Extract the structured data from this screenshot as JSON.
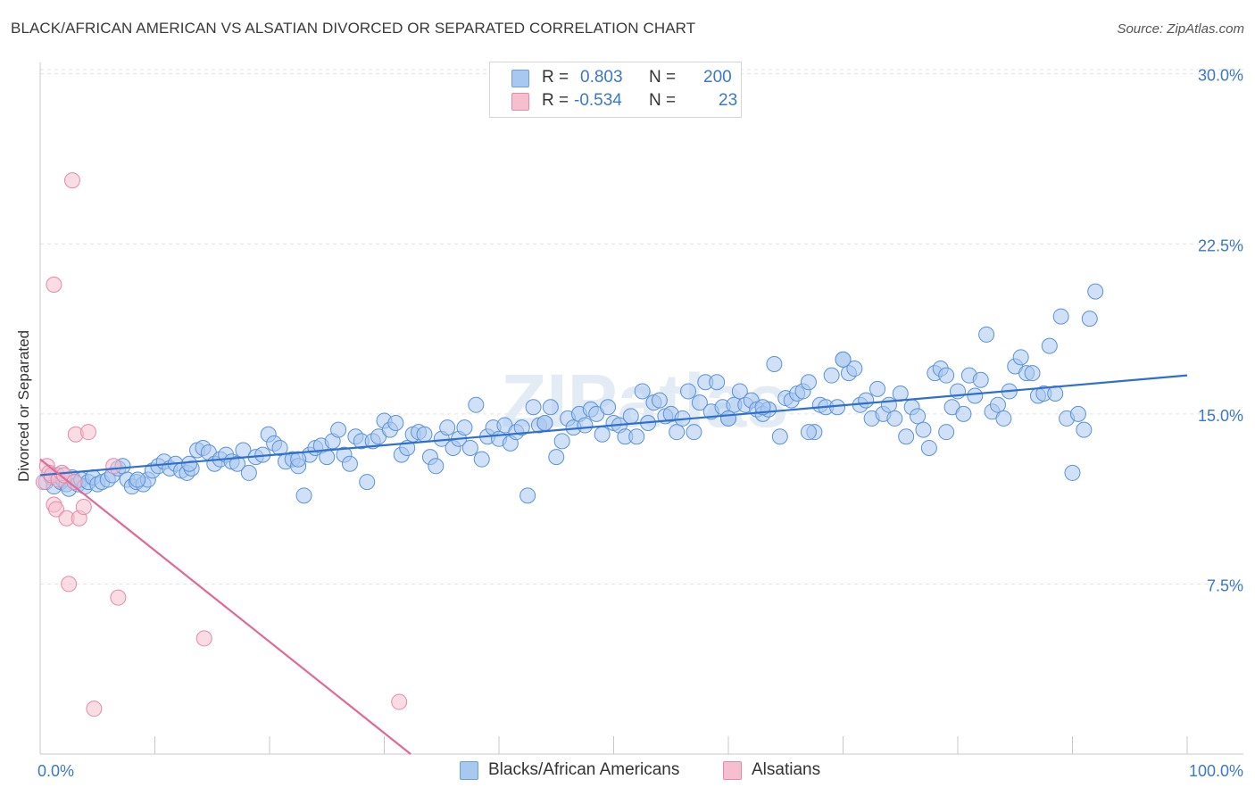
{
  "header": {
    "title": "BLACK/AFRICAN AMERICAN VS ALSATIAN DIVORCED OR SEPARATED CORRELATION CHART",
    "source": "Source: ZipAtlas.com"
  },
  "legend": {
    "rows": [
      {
        "r_label": "R =",
        "r_value": "0.803",
        "n_label": "N =",
        "n_value": "200",
        "color": "#a9c8f0",
        "border": "#6d9fdc"
      },
      {
        "r_label": "R =",
        "r_value": "-0.534",
        "n_label": "N =",
        "n_value": "23",
        "color": "#f6bfd0",
        "border": "#e58aa8"
      }
    ]
  },
  "bottom_legend": [
    {
      "label": "Blacks/African Americans",
      "color": "#a9c8f0",
      "border": "#6d9fdc"
    },
    {
      "label": "Alsatians",
      "color": "#f6bfd0",
      "border": "#e58aa8"
    }
  ],
  "watermark": "ZIPatlas",
  "chart_data": {
    "type": "scatter",
    "title": "BLACK/AFRICAN AMERICAN VS ALSATIAN DIVORCED OR SEPARATED CORRELATION CHART",
    "xlabel": "",
    "ylabel": "Divorced or Separated",
    "xlim": [
      0,
      100
    ],
    "ylim": [
      0,
      30.5
    ],
    "y_ticks": [
      7.5,
      15.0,
      22.5,
      30.0
    ],
    "y_tick_labels": [
      "7.5%",
      "15.0%",
      "22.5%",
      "30.0%"
    ],
    "x_tick_labels": [
      "0.0%",
      "100.0%"
    ],
    "grid": "horizontal dashed",
    "legend_position": "top-center",
    "colors": {
      "blue": "#3a78c8",
      "pink": "#e06a95",
      "axis_text": "#3a78c8"
    },
    "series": [
      {
        "name": "Blacks/African Americans",
        "color": "#a9c8f0",
        "trendline": {
          "x": [
            0,
            100
          ],
          "y": [
            12.3,
            16.7
          ],
          "color": "#2f6fce"
        },
        "points": [
          [
            0.5,
            12.0
          ],
          [
            1.0,
            12.2
          ],
          [
            1.2,
            11.8
          ],
          [
            1.5,
            12.3
          ],
          [
            1.8,
            12.0
          ],
          [
            2.0,
            12.1
          ],
          [
            2.3,
            11.9
          ],
          [
            2.5,
            11.7
          ],
          [
            2.8,
            12.2
          ],
          [
            3.0,
            12.0
          ],
          [
            3.3,
            11.9
          ],
          [
            3.6,
            12.1
          ],
          [
            3.9,
            11.8
          ],
          [
            4.2,
            12.0
          ],
          [
            4.6,
            12.2
          ],
          [
            5.0,
            11.9
          ],
          [
            5.4,
            12.0
          ],
          [
            5.9,
            12.1
          ],
          [
            6.3,
            12.3
          ],
          [
            6.8,
            12.6
          ],
          [
            7.2,
            12.7
          ],
          [
            7.6,
            12.1
          ],
          [
            8.0,
            11.8
          ],
          [
            8.4,
            12.0
          ],
          [
            9.0,
            11.9
          ],
          [
            9.4,
            12.1
          ],
          [
            9.8,
            12.5
          ],
          [
            10.3,
            12.7
          ],
          [
            10.8,
            12.9
          ],
          [
            11.3,
            12.6
          ],
          [
            11.8,
            12.8
          ],
          [
            12.3,
            12.5
          ],
          [
            12.8,
            12.4
          ],
          [
            13.2,
            12.6
          ],
          [
            13.7,
            13.4
          ],
          [
            14.2,
            13.5
          ],
          [
            14.7,
            13.3
          ],
          [
            15.2,
            12.8
          ],
          [
            15.7,
            13.0
          ],
          [
            16.2,
            13.2
          ],
          [
            16.7,
            12.9
          ],
          [
            17.2,
            12.8
          ],
          [
            17.7,
            13.4
          ],
          [
            18.2,
            12.4
          ],
          [
            18.8,
            13.1
          ],
          [
            19.4,
            13.2
          ],
          [
            19.9,
            14.1
          ],
          [
            20.4,
            13.7
          ],
          [
            20.9,
            13.5
          ],
          [
            21.4,
            12.9
          ],
          [
            22.0,
            13.0
          ],
          [
            22.5,
            12.7
          ],
          [
            23.0,
            11.4
          ],
          [
            23.5,
            13.2
          ],
          [
            24.0,
            13.5
          ],
          [
            24.5,
            13.6
          ],
          [
            25.0,
            13.1
          ],
          [
            25.5,
            13.8
          ],
          [
            26.0,
            14.3
          ],
          [
            26.5,
            13.2
          ],
          [
            27.0,
            12.8
          ],
          [
            27.5,
            14.0
          ],
          [
            28.0,
            13.8
          ],
          [
            28.5,
            12.0
          ],
          [
            29.0,
            13.8
          ],
          [
            29.5,
            14.0
          ],
          [
            30.0,
            14.7
          ],
          [
            30.5,
            14.3
          ],
          [
            31.0,
            14.6
          ],
          [
            31.5,
            13.2
          ],
          [
            32.0,
            13.5
          ],
          [
            32.5,
            14.1
          ],
          [
            33.0,
            14.2
          ],
          [
            33.5,
            14.1
          ],
          [
            34.0,
            13.1
          ],
          [
            34.5,
            12.7
          ],
          [
            35.0,
            13.9
          ],
          [
            35.5,
            14.4
          ],
          [
            36.0,
            13.5
          ],
          [
            36.5,
            13.9
          ],
          [
            37.0,
            14.4
          ],
          [
            37.5,
            13.5
          ],
          [
            38.0,
            15.4
          ],
          [
            38.5,
            13.0
          ],
          [
            39.0,
            14.0
          ],
          [
            39.5,
            14.4
          ],
          [
            40.0,
            13.9
          ],
          [
            40.5,
            14.5
          ],
          [
            41.0,
            13.7
          ],
          [
            41.5,
            14.2
          ],
          [
            42.0,
            14.4
          ],
          [
            42.5,
            11.4
          ],
          [
            43.0,
            15.3
          ],
          [
            43.5,
            14.5
          ],
          [
            44.0,
            14.6
          ],
          [
            44.5,
            15.3
          ],
          [
            45.0,
            13.1
          ],
          [
            45.5,
            13.8
          ],
          [
            46.0,
            14.8
          ],
          [
            46.5,
            14.4
          ],
          [
            47.0,
            15.0
          ],
          [
            47.5,
            14.5
          ],
          [
            48.0,
            15.2
          ],
          [
            48.5,
            15.0
          ],
          [
            49.0,
            14.1
          ],
          [
            49.5,
            15.3
          ],
          [
            50.0,
            14.6
          ],
          [
            50.5,
            14.5
          ],
          [
            51.0,
            14.0
          ],
          [
            51.5,
            14.9
          ],
          [
            52.0,
            14.0
          ],
          [
            52.5,
            16.0
          ],
          [
            53.0,
            14.6
          ],
          [
            53.5,
            15.5
          ],
          [
            54.0,
            15.6
          ],
          [
            54.5,
            14.9
          ],
          [
            55.0,
            15.0
          ],
          [
            55.5,
            14.2
          ],
          [
            56.0,
            14.8
          ],
          [
            56.5,
            16.0
          ],
          [
            57.0,
            14.2
          ],
          [
            57.5,
            15.5
          ],
          [
            58.0,
            16.4
          ],
          [
            58.5,
            15.1
          ],
          [
            59.0,
            16.4
          ],
          [
            59.5,
            15.3
          ],
          [
            60.0,
            14.8
          ],
          [
            60.5,
            15.4
          ],
          [
            61.0,
            16.0
          ],
          [
            61.5,
            15.4
          ],
          [
            62.0,
            15.6
          ],
          [
            62.5,
            15.2
          ],
          [
            63.0,
            15.0
          ],
          [
            63.5,
            15.2
          ],
          [
            64.0,
            17.2
          ],
          [
            64.5,
            14.0
          ],
          [
            65.0,
            15.7
          ],
          [
            65.5,
            15.6
          ],
          [
            66.0,
            15.9
          ],
          [
            66.5,
            16.0
          ],
          [
            67.0,
            16.4
          ],
          [
            67.5,
            14.2
          ],
          [
            68.0,
            15.4
          ],
          [
            68.5,
            15.3
          ],
          [
            69.0,
            16.7
          ],
          [
            69.5,
            15.3
          ],
          [
            70.0,
            17.4
          ],
          [
            70.5,
            16.8
          ],
          [
            71.0,
            17.0
          ],
          [
            71.5,
            15.4
          ],
          [
            72.0,
            15.6
          ],
          [
            72.5,
            14.8
          ],
          [
            73.0,
            16.1
          ],
          [
            73.5,
            15.0
          ],
          [
            74.0,
            15.4
          ],
          [
            74.5,
            14.8
          ],
          [
            75.0,
            15.9
          ],
          [
            75.5,
            14.0
          ],
          [
            76.0,
            15.3
          ],
          [
            76.5,
            14.9
          ],
          [
            77.0,
            14.3
          ],
          [
            77.5,
            13.5
          ],
          [
            78.0,
            16.8
          ],
          [
            78.5,
            17.0
          ],
          [
            79.0,
            14.2
          ],
          [
            79.5,
            15.3
          ],
          [
            80.0,
            16.0
          ],
          [
            80.5,
            15.0
          ],
          [
            81.0,
            16.7
          ],
          [
            81.5,
            15.8
          ],
          [
            82.0,
            16.5
          ],
          [
            82.5,
            18.5
          ],
          [
            83.0,
            15.1
          ],
          [
            83.5,
            15.4
          ],
          [
            84.0,
            14.8
          ],
          [
            84.5,
            16.0
          ],
          [
            85.0,
            17.1
          ],
          [
            85.5,
            17.5
          ],
          [
            86.0,
            16.8
          ],
          [
            86.5,
            16.8
          ],
          [
            87.0,
            15.8
          ],
          [
            87.5,
            15.9
          ],
          [
            88.0,
            18.0
          ],
          [
            88.5,
            15.9
          ],
          [
            89.0,
            19.3
          ],
          [
            89.5,
            14.8
          ],
          [
            90.0,
            12.4
          ],
          [
            90.5,
            15.0
          ],
          [
            91.0,
            14.3
          ],
          [
            91.5,
            19.2
          ],
          [
            92.0,
            20.4
          ],
          [
            22.5,
            13.0
          ],
          [
            44.0,
            14.6
          ],
          [
            60.0,
            14.8
          ],
          [
            67.0,
            14.2
          ],
          [
            70.0,
            17.4
          ],
          [
            13.0,
            12.8
          ],
          [
            8.5,
            12.1
          ],
          [
            63.0,
            15.3
          ],
          [
            79.0,
            16.7
          ]
        ]
      },
      {
        "name": "Alsatians",
        "color": "#f6bfd0",
        "trendline": {
          "x": [
            0,
            32.3
          ],
          "y": [
            13.0,
            0
          ],
          "color": "#e06a95"
        },
        "points": [
          [
            0.3,
            12.0
          ],
          [
            0.6,
            12.7
          ],
          [
            0.8,
            12.4
          ],
          [
            1.0,
            12.3
          ],
          [
            1.2,
            11.0
          ],
          [
            1.4,
            10.8
          ],
          [
            1.6,
            12.1
          ],
          [
            1.9,
            12.4
          ],
          [
            2.1,
            12.3
          ],
          [
            2.3,
            10.4
          ],
          [
            2.5,
            7.5
          ],
          [
            2.8,
            25.3
          ],
          [
            3.0,
            12.0
          ],
          [
            3.1,
            14.1
          ],
          [
            3.4,
            10.4
          ],
          [
            3.8,
            10.9
          ],
          [
            4.2,
            14.2
          ],
          [
            4.7,
            2.0
          ],
          [
            6.4,
            12.7
          ],
          [
            6.8,
            6.9
          ],
          [
            14.3,
            5.1
          ],
          [
            31.3,
            2.3
          ],
          [
            1.2,
            20.7
          ]
        ]
      }
    ]
  }
}
